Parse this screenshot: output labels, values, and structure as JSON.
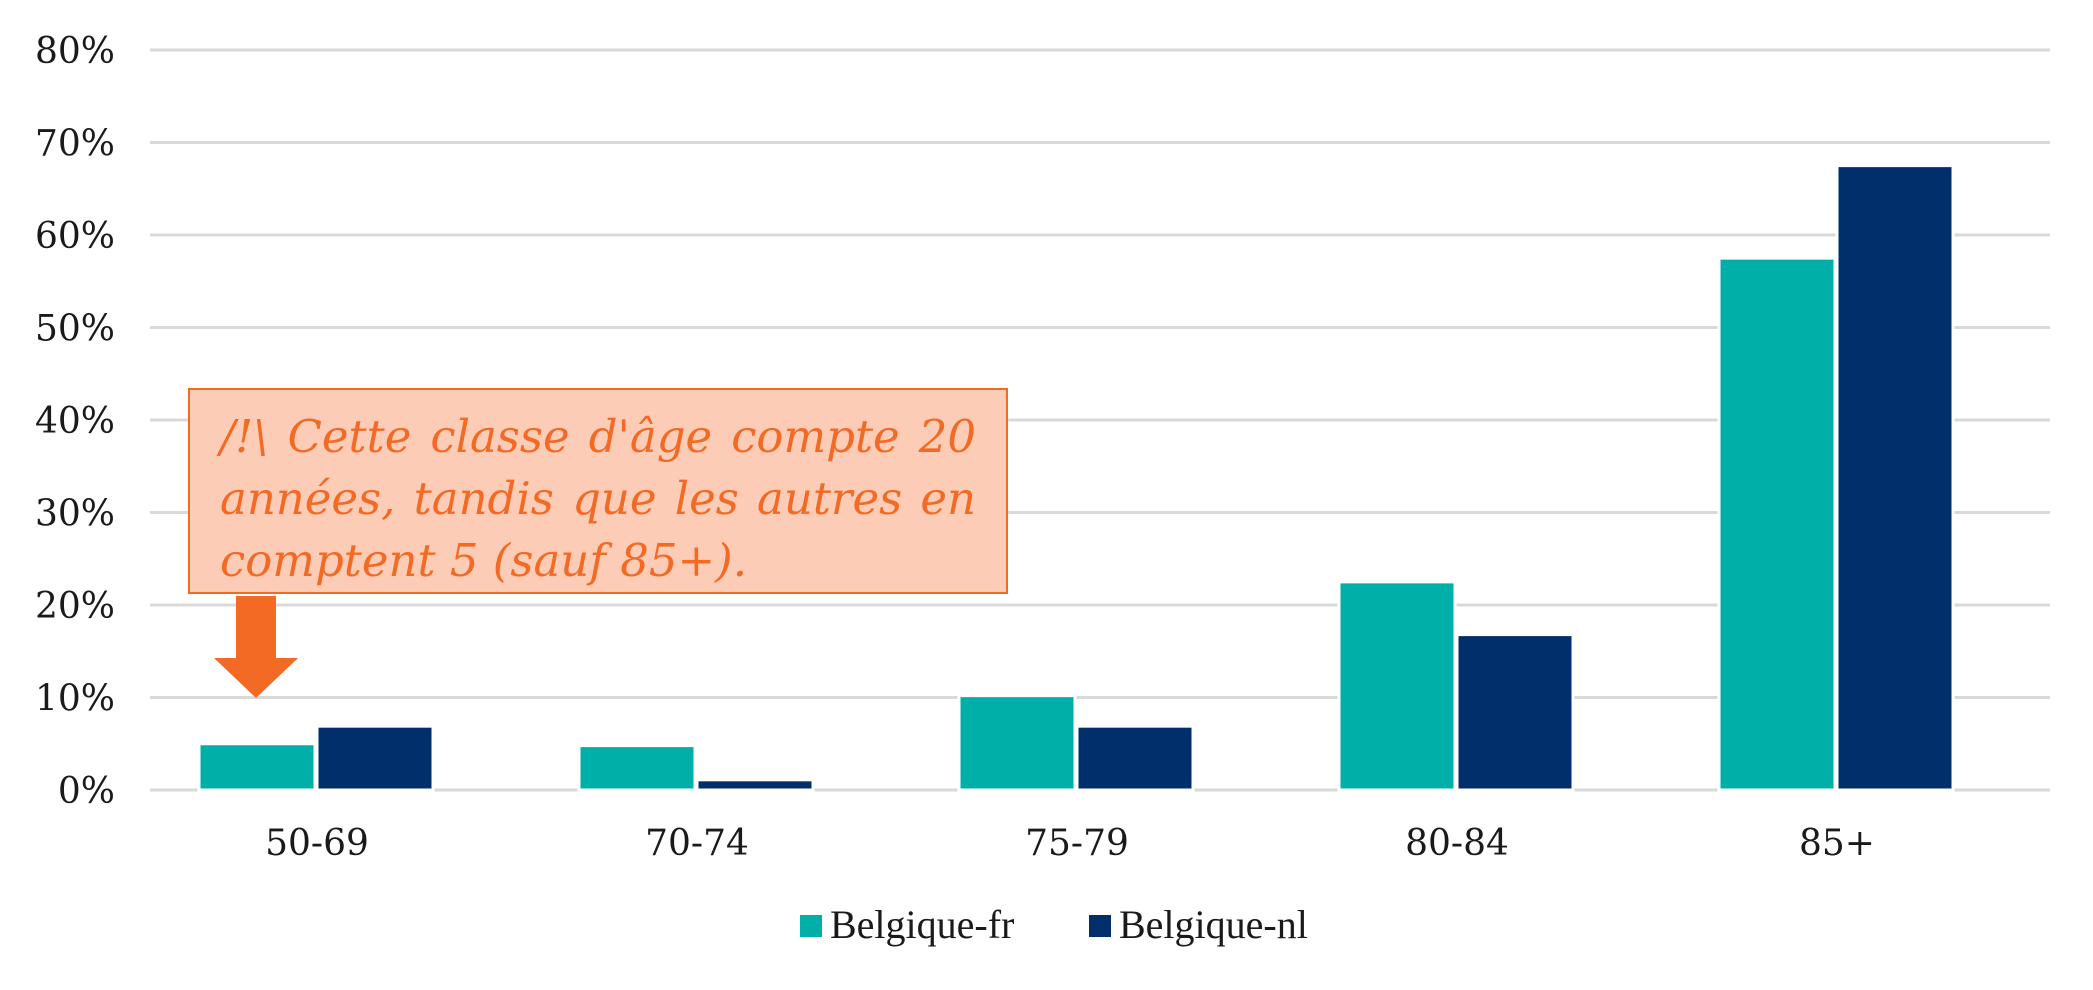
{
  "chart_data": {
    "type": "bar",
    "categories": [
      "50-69",
      "70-74",
      "75-79",
      "80-84",
      "85+"
    ],
    "series": [
      {
        "name": "Belgique-fr",
        "color": "#00b0a8",
        "values": [
          5.0,
          4.8,
          10.2,
          22.5,
          57.5
        ]
      },
      {
        "name": "Belgique-nl",
        "color": "#002f6b",
        "values": [
          6.9,
          1.1,
          6.9,
          16.8,
          67.5
        ]
      }
    ],
    "yticks": [
      "0%",
      "10%",
      "20%",
      "30%",
      "40%",
      "50%",
      "60%",
      "70%",
      "80%"
    ],
    "ylim": [
      0,
      80
    ],
    "grid": true,
    "legend_position": "bottom",
    "annotation": {
      "text": "/!\\ Cette classe d'âge compte 20 années, tandis que les autres en comptent 5 (sauf 85+).",
      "target_category": "50-69",
      "color": "#f26a24",
      "fill": "#fcccb6"
    }
  }
}
